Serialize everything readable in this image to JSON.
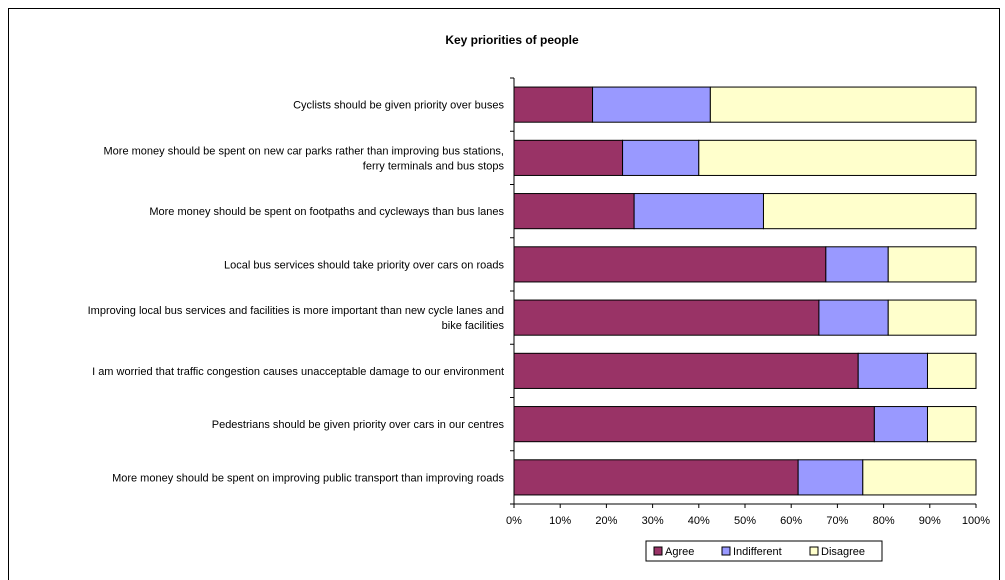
{
  "chart_data": {
    "type": "bar",
    "orientation": "horizontal",
    "stacked": "percent",
    "title": "Key priorities of people",
    "categories": [
      [
        "Cyclists should be given priority over buses"
      ],
      [
        "More money should be spent on new car parks rather than improving bus stations,",
        "ferry terminals and bus stops"
      ],
      [
        "More money should be spent on footpaths and cycleways than bus lanes"
      ],
      [
        "Local bus services should take priority over cars on roads"
      ],
      [
        "Improving local bus services and facilities is more important than new cycle lanes and",
        "bike facilities"
      ],
      [
        "I am worried that traffic congestion causes unacceptable damage to our environment"
      ],
      [
        "Pedestrians should be given priority over cars in our centres"
      ],
      [
        "More money should be spent on improving public transport than improving roads"
      ]
    ],
    "series": [
      {
        "name": "Agree",
        "color": "#993366",
        "values": [
          17,
          23.5,
          26,
          67.5,
          66,
          74.5,
          78,
          61.5
        ]
      },
      {
        "name": "Indifferent",
        "color": "#9999FF",
        "values": [
          25.5,
          16.5,
          28,
          13.5,
          15,
          15,
          11.5,
          14
        ]
      },
      {
        "name": "Disagree",
        "color": "#FFFFCC",
        "values": [
          57.5,
          60,
          46,
          19,
          19,
          10.5,
          10.5,
          24.5
        ]
      }
    ],
    "x_ticks": [
      "0%",
      "10%",
      "20%",
      "30%",
      "40%",
      "50%",
      "60%",
      "70%",
      "80%",
      "90%",
      "100%"
    ],
    "xlim": [
      0,
      100
    ],
    "grid": false,
    "legend_position": "bottom"
  }
}
